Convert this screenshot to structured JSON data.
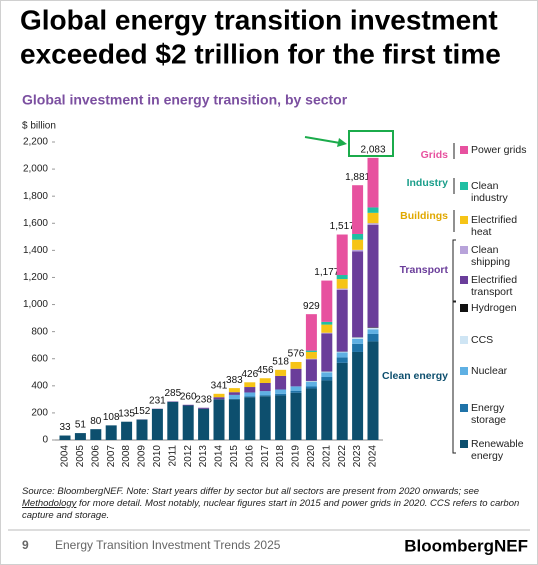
{
  "chart_data": {
    "type": "stacked-bar",
    "title": [
      "Global energy transition investment",
      "exceeded $2 trillion for the first time"
    ],
    "subtitle": "Global investment in energy transition, by sector",
    "y_label": "$ billion",
    "ylim": [
      0,
      2200
    ],
    "yticks": [
      0,
      200,
      400,
      600,
      800,
      {
        "value": 1000,
        "label": "1,000"
      },
      {
        "value": 1200,
        "label": "1,200"
      },
      {
        "value": 1400,
        "label": "1,400"
      },
      {
        "value": 1600,
        "label": "1,600"
      },
      {
        "value": 1800,
        "label": "1,800"
      },
      {
        "value": 2000,
        "label": "2,000"
      },
      {
        "value": 2200,
        "label": "2,200"
      }
    ],
    "categories": [
      "2004",
      "2005",
      "2006",
      "2007",
      "2008",
      "2009",
      "2010",
      "2011",
      "2012",
      "2013",
      "2014",
      "2015",
      "2016",
      "2017",
      "2018",
      "2019",
      "2020",
      "2021",
      "2022",
      "2023",
      "2024"
    ],
    "series": [
      {
        "name": "Renewable energy",
        "color": "#0d4f6e",
        "values": [
          33,
          51,
          80,
          108,
          135,
          151,
          229,
          282,
          255,
          231,
          299,
          300,
          316,
          323,
          329,
          349,
          380,
          440,
          570,
          650,
          728
        ]
      },
      {
        "name": "Energy storage",
        "color": "#1f73a8",
        "values": [
          0,
          0,
          0,
          0,
          0,
          0,
          0,
          0,
          0,
          0,
          2,
          3,
          5,
          8,
          12,
          15,
          15,
          25,
          40,
          60,
          55
        ]
      },
      {
        "name": "Nuclear",
        "color": "#5fb0e3",
        "values": [
          0,
          0,
          0,
          0,
          0,
          0,
          0,
          0,
          0,
          0,
          0,
          30,
          30,
          30,
          32,
          32,
          35,
          35,
          37,
          37,
          34
        ]
      },
      {
        "name": "CCS",
        "color": "#cfe5f4",
        "values": [
          0,
          0,
          0,
          0,
          0,
          0,
          0,
          0,
          0,
          0,
          0,
          0,
          0,
          0,
          0,
          0,
          5,
          5,
          5,
          10,
          11
        ]
      },
      {
        "name": "Hydrogen",
        "color": "#111111",
        "values": [
          0,
          0,
          0,
          0,
          0,
          0,
          0,
          0,
          0,
          0,
          0,
          0,
          0,
          0,
          0,
          0,
          1,
          1,
          1,
          2,
          4
        ]
      },
      {
        "name": "Electrified transport",
        "color": "#6a3d9a",
        "values": [
          0,
          0,
          0,
          0,
          0,
          1,
          2,
          3,
          5,
          7,
          15,
          20,
          40,
          60,
          100,
          130,
          160,
          280,
          455,
          633,
          757
        ]
      },
      {
        "name": "Clean shipping",
        "color": "#b8a3da",
        "values": [
          0,
          0,
          0,
          0,
          0,
          0,
          0,
          0,
          0,
          0,
          0,
          0,
          0,
          0,
          0,
          0,
          4,
          6,
          10,
          12,
          12
        ]
      },
      {
        "name": "Electrified heat",
        "color": "#f6c416",
        "values": [
          0,
          0,
          0,
          0,
          0,
          0,
          0,
          0,
          0,
          0,
          25,
          30,
          35,
          35,
          45,
          50,
          50,
          60,
          70,
          75,
          76
        ]
      },
      {
        "name": "Clean industry",
        "color": "#1fbfa3",
        "values": [
          0,
          0,
          0,
          0,
          0,
          0,
          0,
          0,
          0,
          0,
          0,
          0,
          0,
          0,
          0,
          0,
          10,
          20,
          30,
          42,
          40
        ]
      },
      {
        "name": "Power grids",
        "color": "#e7519f",
        "values": [
          0,
          0,
          0,
          0,
          0,
          0,
          0,
          0,
          0,
          0,
          0,
          0,
          0,
          0,
          0,
          0,
          269,
          305,
          299,
          360,
          366
        ]
      }
    ],
    "totals": {
      "values": [
        33,
        51,
        80,
        108,
        135,
        152,
        231,
        285,
        260,
        238,
        341,
        383,
        426,
        456,
        518,
        576,
        929,
        1177,
        1517,
        1881,
        2083
      ],
      "value_labels": [
        "33",
        "51",
        "80",
        "108",
        "135",
        "152",
        "231",
        "285",
        "260",
        "238",
        "341",
        "383",
        "426",
        "456",
        "518",
        "576",
        "929",
        "1,177",
        "1,517",
        "1,881",
        "2,083"
      ]
    },
    "legend_groups": [
      {
        "label": "Grids",
        "color": "#e7519f"
      },
      {
        "label": "Industry",
        "color": "#1a9e8a"
      },
      {
        "label": "Buildings",
        "color": "#e0a800"
      },
      {
        "label": "Transport",
        "color": "#6a3d9a"
      },
      {
        "label": "Clean energy",
        "color": "#0d4f6e"
      }
    ],
    "source": {
      "before": "Source: BloombergNEF. Note: Start years differ by sector but all sectors are present from 2020 onwards; see ",
      "link": "Methodology",
      "after": " for more detail. Most notably, nuclear figures start in 2015 and power grids in 2020. CCS refers to carbon capture and storage."
    },
    "footer": {
      "page": "9",
      "report": "Energy Transition Investment Trends 2025",
      "brand": "BloombergNEF"
    }
  }
}
